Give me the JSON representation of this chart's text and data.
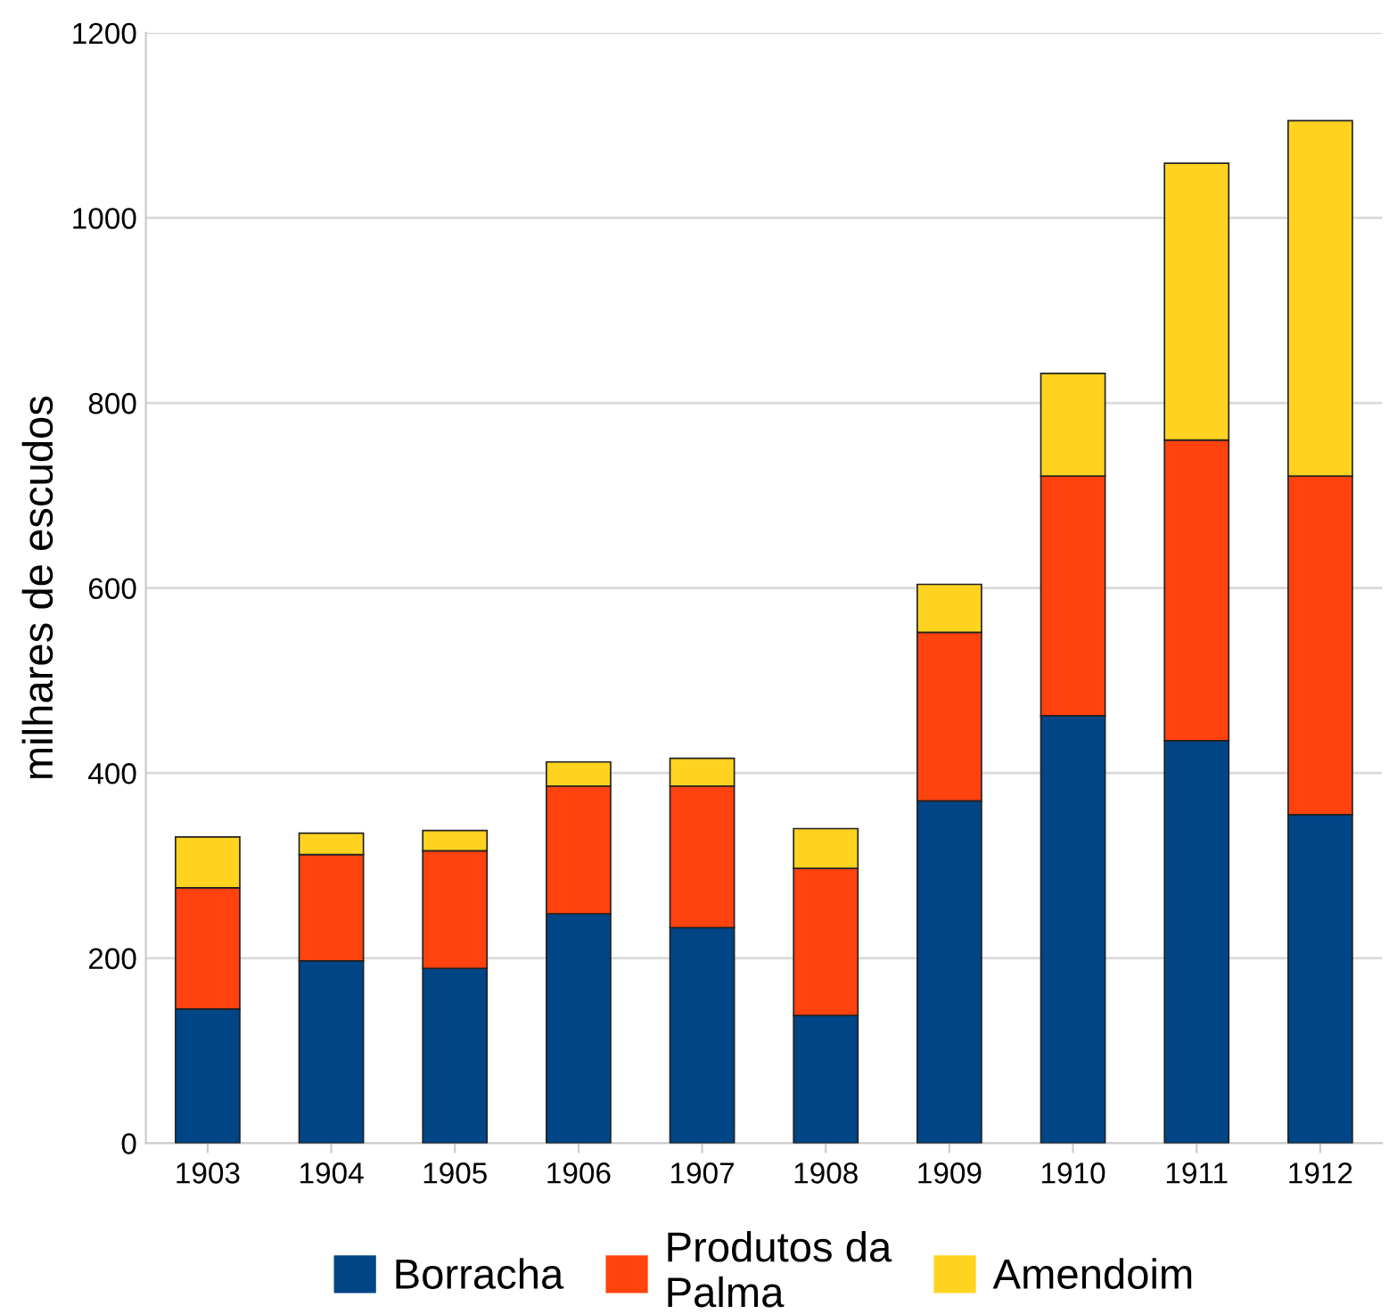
{
  "chart_data": {
    "type": "bar",
    "stacked": true,
    "ylabel": "milhares de escudos",
    "categories": [
      "1903",
      "1904",
      "1905",
      "1906",
      "1907",
      "1908",
      "1909",
      "1910",
      "1911",
      "1912"
    ],
    "series": [
      {
        "name": "Borracha",
        "color": "#004586",
        "values": [
          145,
          197,
          189,
          248,
          233,
          138,
          370,
          462,
          435,
          355
        ]
      },
      {
        "name": "Produtos da\nPalma",
        "color": "#ff420e",
        "values": [
          131,
          115,
          127,
          138,
          153,
          159,
          182,
          259,
          325,
          366
        ]
      },
      {
        "name": "Amendoim",
        "color": "#ffd320",
        "values": [
          55,
          23,
          22,
          26,
          30,
          43,
          52,
          111,
          299,
          384
        ]
      }
    ],
    "ylim": [
      0,
      1200
    ],
    "yticks": [
      0,
      200,
      400,
      600,
      800,
      1000,
      1200
    ],
    "grid": "y",
    "legend": "bottom"
  }
}
